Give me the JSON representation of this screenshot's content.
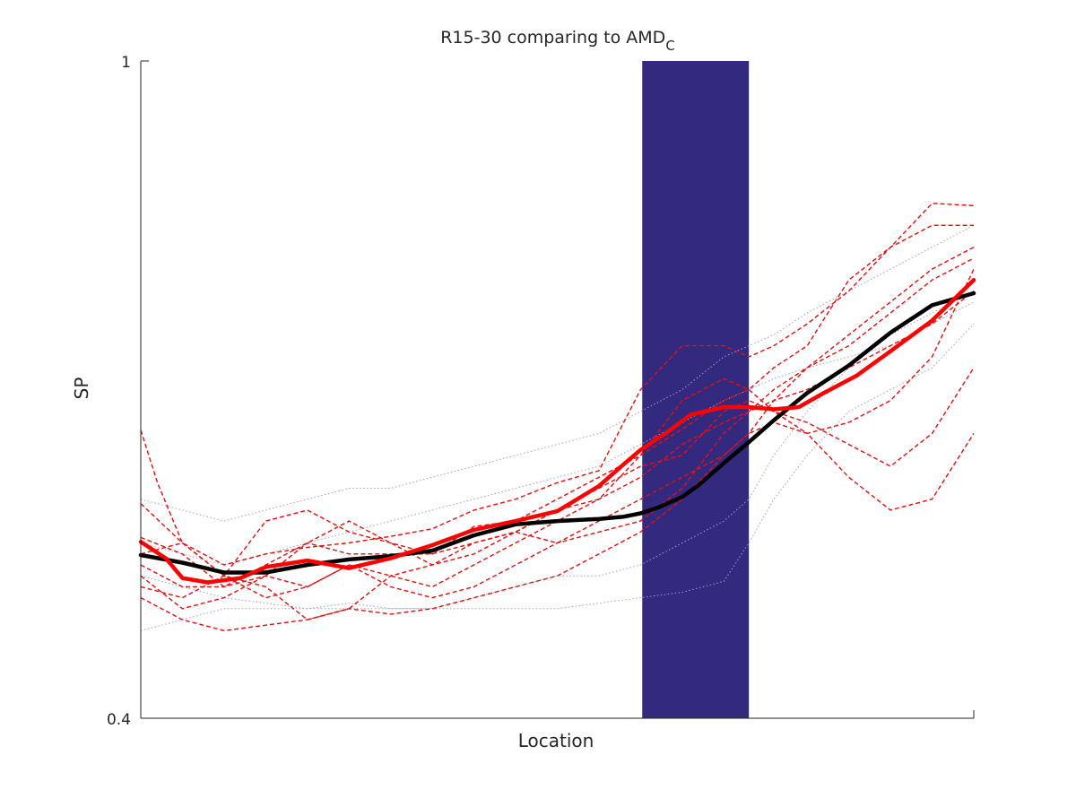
{
  "chart_data": {
    "type": "line",
    "title": "R15-30 comparing to AMD",
    "title_subscript": "C",
    "xlabel": "Location",
    "ylabel": "SP",
    "ylim": [
      0.4,
      1
    ],
    "xlim": [
      0,
      100
    ],
    "yticks": [
      "1",
      "0.4"
    ],
    "grid": false,
    "highlight_band": {
      "x_start": 60.2,
      "x_end": 73,
      "color": "#332a80"
    },
    "colors": {
      "mean_black": "#000000",
      "mean_red": "#ff0000",
      "individual_red": "#e01010",
      "individual_gray": "#9aa0c0",
      "axis": "#262626"
    },
    "mean_black": {
      "x": [
        0,
        5,
        10,
        15,
        20,
        25,
        30,
        35,
        40,
        45,
        50,
        55,
        58,
        60,
        62,
        65,
        67,
        70,
        73,
        76,
        80,
        85,
        90,
        95,
        100
      ],
      "y": [
        0.549,
        0.542,
        0.533,
        0.533,
        0.54,
        0.545,
        0.548,
        0.553,
        0.567,
        0.577,
        0.58,
        0.582,
        0.584,
        0.587,
        0.592,
        0.602,
        0.613,
        0.633,
        0.652,
        0.672,
        0.697,
        0.722,
        0.752,
        0.777,
        0.788
      ]
    },
    "mean_red": {
      "x": [
        0,
        3,
        5,
        8,
        12,
        15,
        20,
        25,
        30,
        35,
        40,
        45,
        50,
        55,
        58,
        60,
        63,
        66,
        70,
        73,
        76,
        79,
        82,
        86,
        90,
        95,
        100
      ],
      "y": [
        0.561,
        0.546,
        0.528,
        0.524,
        0.528,
        0.538,
        0.544,
        0.537,
        0.546,
        0.558,
        0.572,
        0.58,
        0.589,
        0.612,
        0.632,
        0.645,
        0.66,
        0.677,
        0.684,
        0.684,
        0.682,
        0.684,
        0.697,
        0.713,
        0.735,
        0.763,
        0.8
      ]
    },
    "individual_red": [
      {
        "x": [
          0,
          2,
          5,
          10,
          15,
          20,
          25,
          30,
          35,
          40,
          45,
          50,
          55,
          60,
          65,
          70,
          73,
          76,
          80,
          85,
          90,
          95,
          100
        ],
        "y": [
          0.663,
          0.615,
          0.56,
          0.54,
          0.55,
          0.556,
          0.56,
          0.566,
          0.573,
          0.59,
          0.6,
          0.615,
          0.626,
          0.7,
          0.74,
          0.74,
          0.73,
          0.74,
          0.76,
          0.79,
          0.83,
          0.87,
          0.868
        ]
      },
      {
        "x": [
          0,
          5,
          10,
          15,
          20,
          25,
          30,
          35,
          40,
          45,
          50,
          55,
          60,
          65,
          70,
          73,
          76,
          80,
          85,
          90,
          95,
          100
        ],
        "y": [
          0.596,
          0.56,
          0.53,
          0.58,
          0.59,
          0.57,
          0.56,
          0.55,
          0.575,
          0.58,
          0.6,
          0.62,
          0.64,
          0.664,
          0.69,
          0.7,
          0.72,
          0.74,
          0.8,
          0.83,
          0.85,
          0.85
        ]
      },
      {
        "x": [
          0,
          5,
          10,
          15,
          20,
          25,
          30,
          35,
          40,
          45,
          50,
          55,
          60,
          65,
          70,
          73,
          76,
          80,
          85,
          90,
          95,
          100
        ],
        "y": [
          0.565,
          0.55,
          0.52,
          0.54,
          0.56,
          0.58,
          0.56,
          0.54,
          0.56,
          0.57,
          0.59,
          0.6,
          0.64,
          0.69,
          0.71,
          0.7,
          0.68,
          0.66,
          0.67,
          0.69,
          0.73,
          0.81
        ]
      },
      {
        "x": [
          0,
          5,
          10,
          15,
          20,
          25,
          30,
          35,
          40,
          45,
          50,
          55,
          60,
          65,
          70,
          73,
          76,
          80,
          85,
          90,
          95,
          100
        ],
        "y": [
          0.52,
          0.51,
          0.53,
          0.52,
          0.49,
          0.5,
          0.53,
          0.54,
          0.55,
          0.57,
          0.59,
          0.61,
          0.63,
          0.64,
          0.68,
          0.69,
          0.68,
          0.67,
          0.65,
          0.63,
          0.66,
          0.72
        ]
      },
      {
        "x": [
          0,
          5,
          10,
          15,
          20,
          25,
          30,
          35,
          40,
          45,
          50,
          55,
          60,
          65,
          70,
          73,
          76,
          80,
          85,
          90,
          95,
          100
        ],
        "y": [
          0.53,
          0.5,
          0.51,
          0.53,
          0.56,
          0.55,
          0.55,
          0.55,
          0.56,
          0.57,
          0.56,
          0.58,
          0.6,
          0.62,
          0.64,
          0.66,
          0.67,
          0.66,
          0.62,
          0.59,
          0.6,
          0.66
        ]
      },
      {
        "x": [
          0,
          5,
          10,
          15,
          20,
          25,
          30,
          35,
          40,
          45,
          50,
          55,
          60,
          65,
          70,
          73,
          76,
          80,
          85,
          90,
          95,
          100
        ],
        "y": [
          0.55,
          0.56,
          0.53,
          0.51,
          0.52,
          0.54,
          0.52,
          0.51,
          0.52,
          0.54,
          0.56,
          0.57,
          0.58,
          0.61,
          0.66,
          0.68,
          0.7,
          0.72,
          0.74,
          0.77,
          0.8,
          0.82
        ]
      },
      {
        "x": [
          0,
          5,
          10,
          15,
          20,
          25,
          30,
          35,
          40,
          45,
          50,
          55,
          60,
          65,
          70,
          73,
          76,
          80,
          85,
          90,
          95,
          100
        ],
        "y": [
          0.51,
          0.49,
          0.48,
          0.485,
          0.49,
          0.5,
          0.495,
          0.5,
          0.51,
          0.52,
          0.53,
          0.55,
          0.57,
          0.6,
          0.64,
          0.66,
          0.69,
          0.72,
          0.75,
          0.78,
          0.81,
          0.83
        ]
      },
      {
        "x": [
          0,
          5,
          10,
          15,
          20,
          25,
          30,
          35,
          40,
          45,
          50,
          55,
          60,
          65,
          70,
          73,
          76,
          80,
          85,
          90,
          95,
          100
        ],
        "y": [
          0.54,
          0.52,
          0.52,
          0.53,
          0.52,
          0.54,
          0.53,
          0.52,
          0.54,
          0.56,
          0.58,
          0.6,
          0.62,
          0.65,
          0.67,
          0.68,
          0.69,
          0.7,
          0.72,
          0.74,
          0.76,
          0.79
        ]
      }
    ],
    "individual_gray": [
      {
        "x": [
          0,
          5,
          10,
          15,
          20,
          25,
          30,
          35,
          40,
          45,
          50,
          55,
          60,
          65,
          70,
          73,
          76,
          80,
          85,
          90,
          95,
          100
        ],
        "y": [
          0.6,
          0.59,
          0.58,
          0.59,
          0.6,
          0.61,
          0.61,
          0.62,
          0.63,
          0.64,
          0.65,
          0.66,
          0.68,
          0.7,
          0.73,
          0.74,
          0.75,
          0.77,
          0.79,
          0.81,
          0.83,
          0.85
        ]
      },
      {
        "x": [
          0,
          5,
          10,
          15,
          20,
          25,
          30,
          35,
          40,
          45,
          50,
          55,
          60,
          65,
          70,
          73,
          76,
          80,
          85,
          90,
          95,
          100
        ],
        "y": [
          0.53,
          0.52,
          0.51,
          0.505,
          0.5,
          0.505,
          0.5,
          0.5,
          0.51,
          0.52,
          0.53,
          0.53,
          0.54,
          0.56,
          0.58,
          0.6,
          0.64,
          0.68,
          0.72,
          0.75,
          0.77,
          0.79
        ]
      },
      {
        "x": [
          0,
          5,
          10,
          15,
          20,
          25,
          30,
          35,
          40,
          45,
          50,
          55,
          60,
          65,
          70,
          73,
          76,
          80,
          85,
          90,
          95,
          100
        ],
        "y": [
          0.48,
          0.49,
          0.5,
          0.5,
          0.5,
          0.5,
          0.5,
          0.5,
          0.5,
          0.5,
          0.5,
          0.505,
          0.51,
          0.515,
          0.525,
          0.56,
          0.6,
          0.64,
          0.68,
          0.7,
          0.72,
          0.76
        ]
      },
      {
        "x": [
          0,
          5,
          10,
          15,
          20,
          25,
          30,
          35,
          40,
          45,
          50,
          55,
          60,
          65,
          70,
          73,
          76,
          80,
          85,
          90,
          95,
          100
        ],
        "y": [
          0.56,
          0.55,
          0.54,
          0.55,
          0.56,
          0.57,
          0.58,
          0.59,
          0.6,
          0.61,
          0.62,
          0.63,
          0.65,
          0.67,
          0.69,
          0.7,
          0.71,
          0.72,
          0.73,
          0.74,
          0.76,
          0.78
        ]
      }
    ]
  }
}
